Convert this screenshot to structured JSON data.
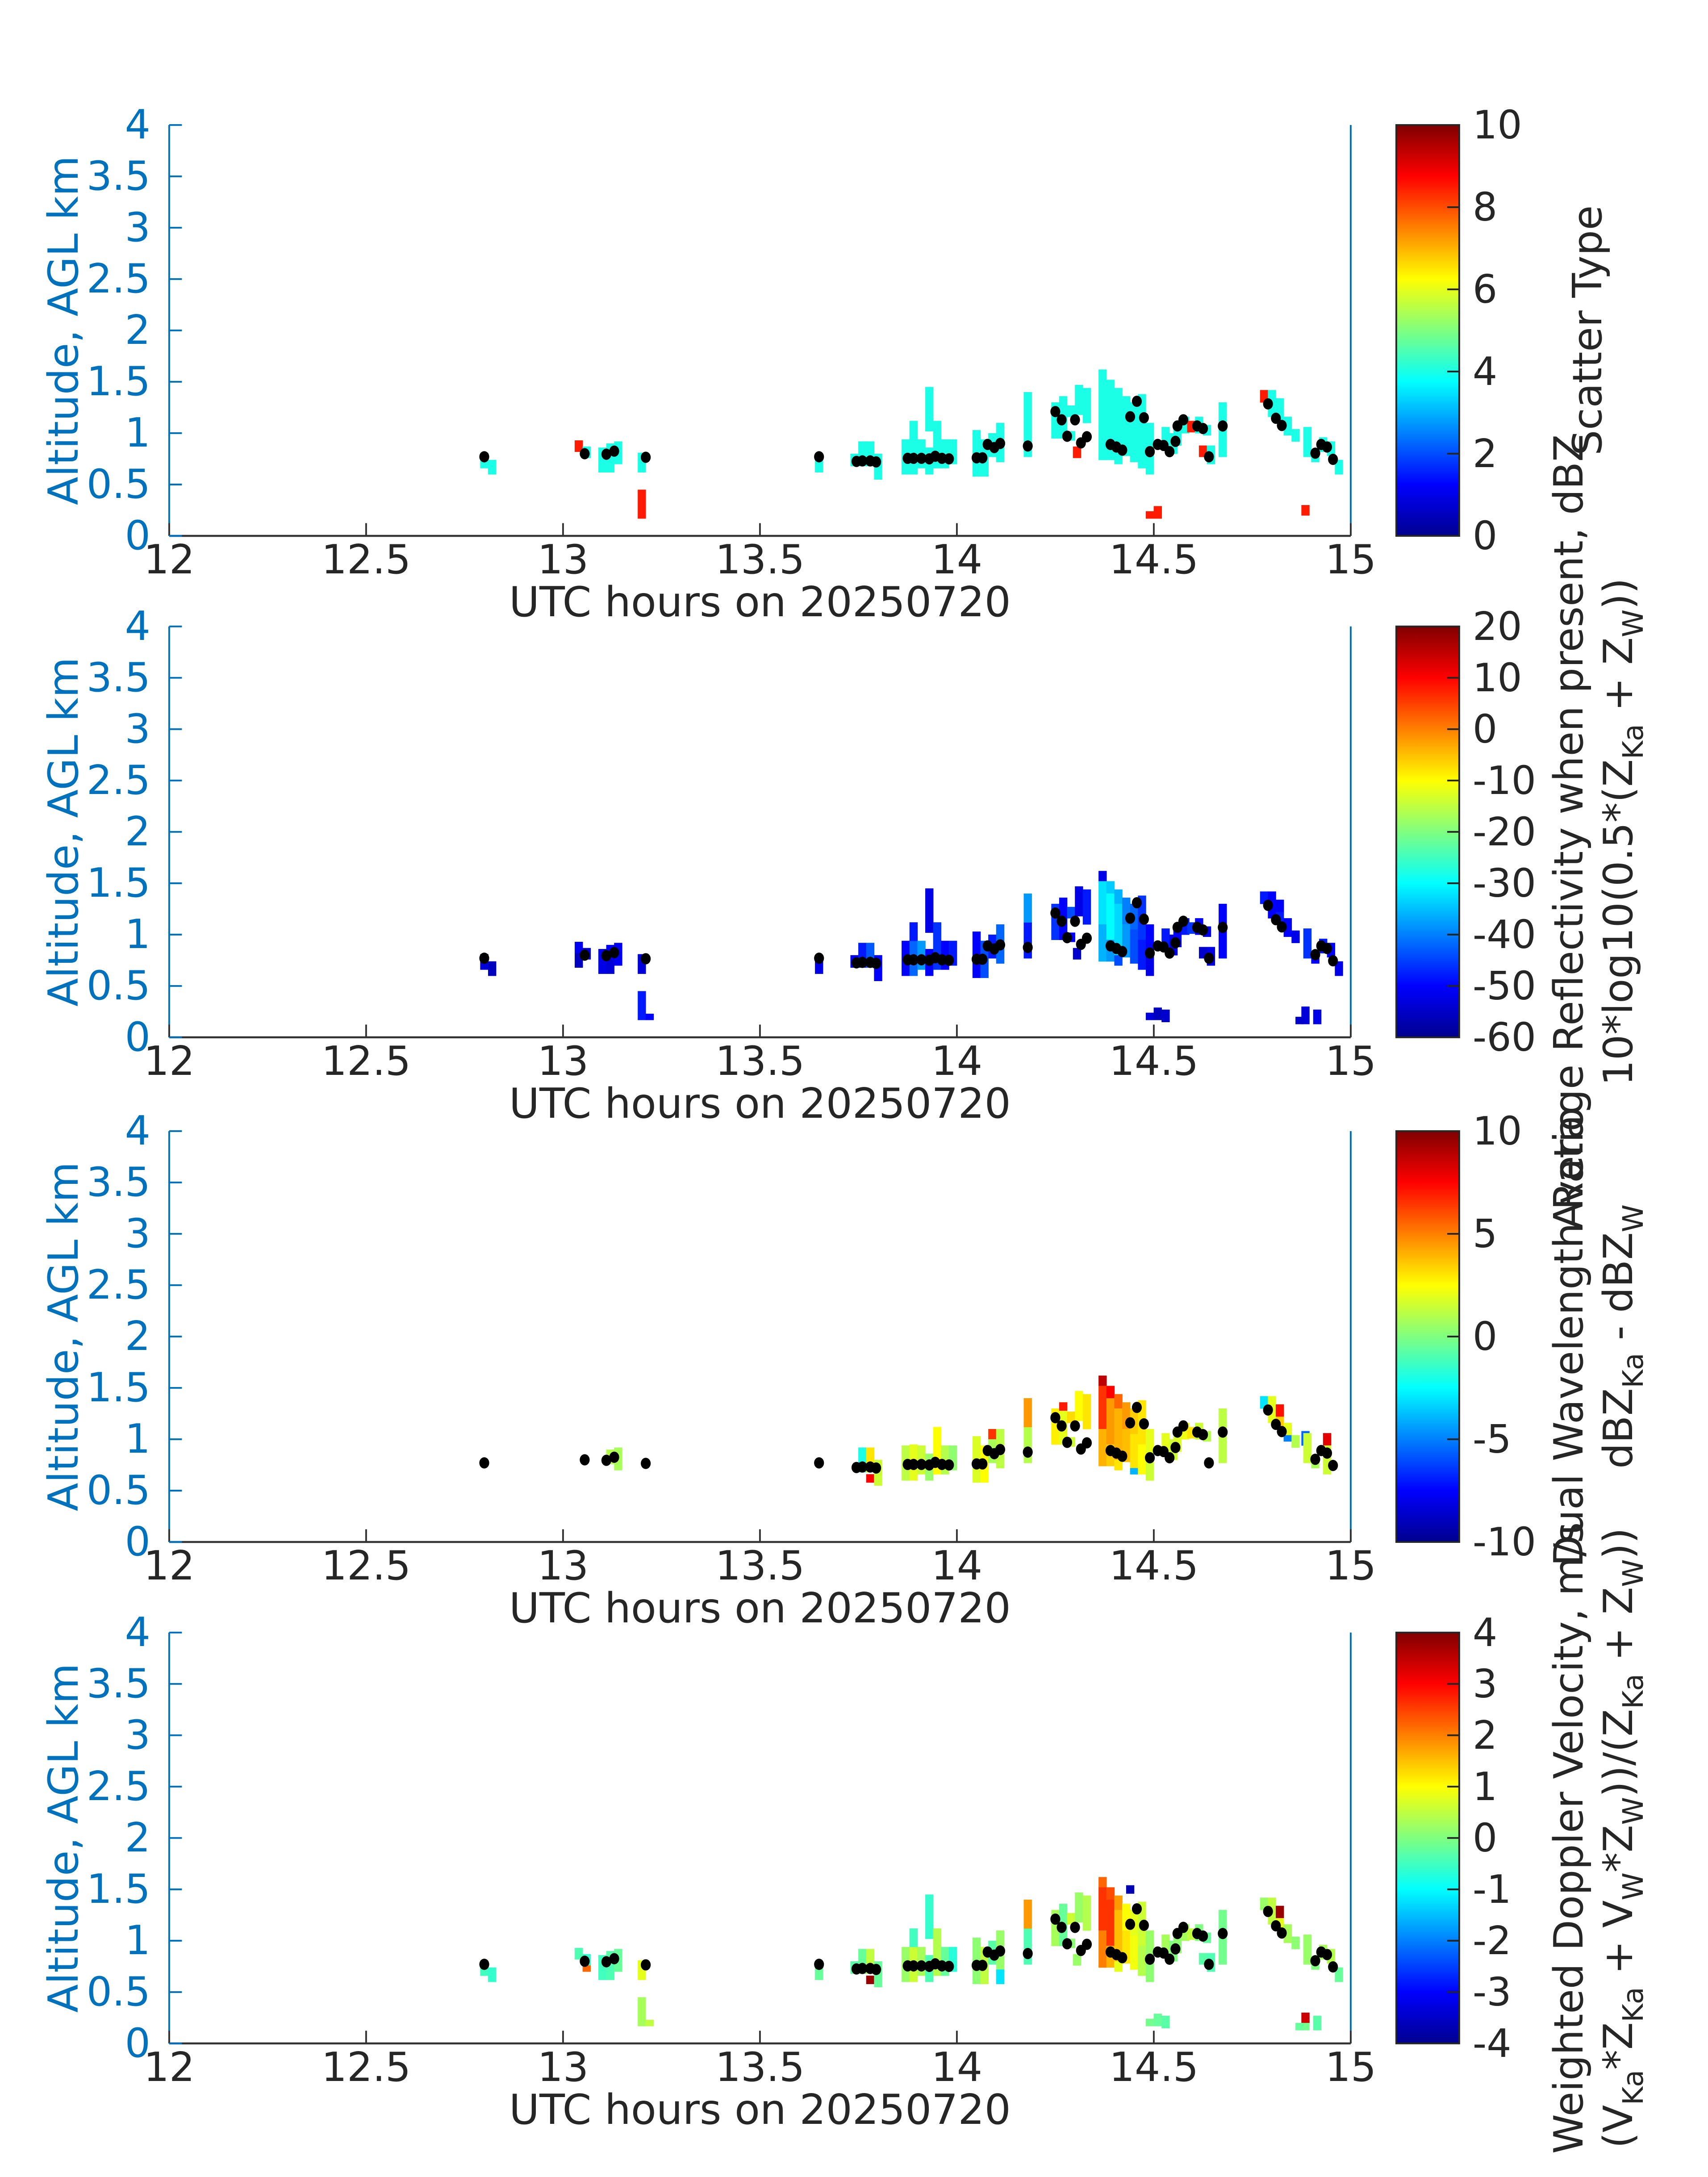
{
  "colors": {
    "background": "#ffffff",
    "y_axis": "#0072BD",
    "x_axis": "#333333",
    "text_dark": "#262626",
    "dot": "#000000",
    "jet_stops": [
      "#00008F",
      "#0000FF",
      "#00FFFF",
      "#FFFF00",
      "#FF0000",
      "#800000"
    ]
  },
  "chart_data": {
    "type": "heatmap",
    "title": "",
    "xlabel": "UTC hours on 20250720",
    "ylabel": "Altitude, AGL km",
    "x_range": [
      12,
      15
    ],
    "y_range": [
      0,
      4
    ],
    "x_ticks": [
      12,
      12.5,
      13,
      13.5,
      14,
      14.5,
      15
    ],
    "x_tick_labels": [
      "12",
      "12.5",
      "13",
      "13.5",
      "14",
      "14.5",
      "15"
    ],
    "y_ticks": [
      0,
      0.5,
      1,
      1.5,
      2,
      2.5,
      3,
      3.5,
      4
    ],
    "y_tick_labels": [
      "0",
      "0.5",
      "1",
      "1.5",
      "2",
      "2.5",
      "3",
      "3.5",
      "4"
    ],
    "grid": false,
    "legend_position": "right-colorbar",
    "cell_dt_hours": 0.02,
    "panels": [
      {
        "id": "scatter-type",
        "clim": [
          0,
          10
        ],
        "cbar_ticks": [
          0,
          2,
          4,
          6,
          8,
          10
        ],
        "cbar_tick_labels": [
          "0",
          "2",
          "4",
          "6",
          "8",
          "10"
        ],
        "label_lines": [
          [
            [
              "Scatter Type",
              "n"
            ]
          ]
        ]
      },
      {
        "id": "average-reflectivity",
        "clim": [
          -60,
          20
        ],
        "cbar_ticks": [
          -60,
          -50,
          -40,
          -30,
          -20,
          -10,
          0,
          10,
          20
        ],
        "cbar_tick_labels": [
          "-60",
          "-50",
          "-40",
          "-30",
          "-20",
          "-10",
          "0",
          "10",
          "20"
        ],
        "label_lines": [
          [
            [
              "Average Reflectivity when present, dBZ",
              "n"
            ]
          ],
          [
            [
              "10*log10(0.5*(Z",
              "n"
            ],
            [
              "Ka",
              "s"
            ],
            [
              " + Z",
              "n"
            ],
            [
              "W",
              "s"
            ],
            [
              "))",
              "n"
            ]
          ]
        ]
      },
      {
        "id": "dual-wavelength-ratio",
        "clim": [
          -10,
          10
        ],
        "cbar_ticks": [
          -10,
          -5,
          0,
          5,
          10
        ],
        "cbar_tick_labels": [
          "-10",
          "-5",
          "0",
          "5",
          "10"
        ],
        "label_lines": [
          [
            [
              "Dual Wavelength Ratio",
              "n"
            ]
          ],
          [
            [
              "dBZ",
              "n"
            ],
            [
              "Ka",
              "s"
            ],
            [
              " - dBZ",
              "n"
            ],
            [
              "W",
              "s"
            ]
          ]
        ]
      },
      {
        "id": "weighted-doppler-velocity",
        "clim": [
          -4,
          4
        ],
        "cbar_ticks": [
          -4,
          -3,
          -2,
          -1,
          0,
          1,
          2,
          3,
          4
        ],
        "cbar_tick_labels": [
          "-4",
          "-3",
          "-2",
          "-1",
          "0",
          "1",
          "2",
          "3",
          "4"
        ],
        "label_lines": [
          [
            [
              "Weighted Doppler Velocity, m/s",
              "n"
            ]
          ],
          [
            [
              "(V",
              "n"
            ],
            [
              "Ka",
              "s"
            ],
            [
              "*Z",
              "n"
            ],
            [
              "Ka",
              "s"
            ],
            [
              " + V",
              "n"
            ],
            [
              "W",
              "s"
            ],
            [
              "*Z",
              "n"
            ],
            [
              "W",
              "s"
            ],
            [
              "))/(Z",
              "n"
            ],
            [
              "Ka",
              "s"
            ],
            [
              " + Z",
              "n"
            ],
            [
              "W",
              "s"
            ],
            [
              "))",
              "n"
            ]
          ]
        ]
      }
    ],
    "cells": [
      [
        12.79,
        0.74,
        0.81,
        4,
        -54,
        null,
        0.9
      ],
      [
        12.79,
        0.66,
        0.74,
        4,
        -53,
        null,
        -0.5
      ],
      [
        12.81,
        0.6,
        0.74,
        4,
        -55,
        null,
        -0.6
      ],
      [
        13.03,
        0.82,
        0.93,
        8.5,
        -51,
        null,
        -0.4
      ],
      [
        13.03,
        0.68,
        0.82,
        null,
        -55,
        null,
        null
      ],
      [
        13.05,
        0.76,
        0.87,
        4,
        -52,
        null,
        -0.6
      ],
      [
        13.05,
        0.7,
        0.76,
        null,
        null,
        null,
        2.2
      ],
      [
        13.09,
        0.62,
        0.86,
        4,
        -52,
        null,
        -0.5
      ],
      [
        13.11,
        0.76,
        0.9,
        4,
        -50,
        1.0,
        -0.3
      ],
      [
        13.11,
        0.62,
        0.76,
        4,
        -53,
        null,
        -0.4
      ],
      [
        13.13,
        0.7,
        0.92,
        4,
        -51,
        0.8,
        -0.2
      ],
      [
        13.19,
        0.62,
        0.81,
        4,
        -53,
        null,
        0.8
      ],
      [
        13.19,
        0.17,
        0.45,
        8.5,
        -48,
        null,
        0.3
      ],
      [
        13.21,
        0.17,
        0.23,
        null,
        -50,
        null,
        0.5
      ],
      [
        13.64,
        0.62,
        0.8,
        4,
        -52,
        null,
        -0.2
      ],
      [
        13.73,
        0.68,
        0.8,
        4,
        -50,
        null,
        -0.3
      ],
      [
        13.75,
        0.68,
        0.92,
        4,
        -48,
        -2.0,
        -0.2
      ],
      [
        13.77,
        0.68,
        0.92,
        4,
        -43,
        3.0,
        0.5
      ],
      [
        13.77,
        0.58,
        0.66,
        null,
        null,
        7.5,
        3.8
      ],
      [
        13.79,
        0.55,
        0.8,
        4,
        -50,
        1.5,
        -0.2
      ],
      [
        13.86,
        0.6,
        0.94,
        4,
        -50,
        1.2,
        0.2
      ],
      [
        13.88,
        0.6,
        0.95,
        4,
        -42,
        2.0,
        0.6
      ],
      [
        13.88,
        0.94,
        1.12,
        4,
        -48,
        null,
        -0.5
      ],
      [
        13.9,
        0.66,
        0.94,
        4,
        -38,
        1.5,
        0.3
      ],
      [
        13.92,
        0.6,
        0.86,
        4,
        -50,
        0.5,
        -0.4
      ],
      [
        13.92,
        1.02,
        1.45,
        4,
        -52,
        null,
        -0.6
      ],
      [
        13.94,
        0.66,
        1.12,
        4,
        -46,
        2.5,
        0.4
      ],
      [
        13.96,
        0.66,
        0.94,
        4,
        -50,
        1.0,
        -0.2
      ],
      [
        13.98,
        0.7,
        0.94,
        4,
        -48,
        0.3,
        -0.7
      ],
      [
        14.04,
        0.58,
        1.03,
        4,
        -50,
        1.8,
        0.1
      ],
      [
        14.06,
        0.58,
        0.94,
        4,
        -44,
        2.5,
        0.5
      ],
      [
        14.08,
        1.0,
        1.1,
        null,
        null,
        6.5,
        null
      ],
      [
        14.08,
        0.77,
        1.0,
        4,
        -48,
        0.8,
        -0.3
      ],
      [
        14.1,
        0.72,
        1.1,
        4,
        -42,
        1.2,
        0.2
      ],
      [
        14.1,
        0.58,
        0.72,
        null,
        null,
        null,
        -1.2
      ],
      [
        14.17,
        0.77,
        1.12,
        4,
        -48,
        1.0,
        -0.4
      ],
      [
        14.17,
        1.12,
        1.4,
        4,
        -38,
        4.5,
        1.8
      ],
      [
        14.24,
        0.95,
        1.3,
        4,
        -46,
        2.8,
        0.3
      ],
      [
        14.26,
        0.95,
        1.36,
        4,
        -50,
        2.0,
        -0.2
      ],
      [
        14.26,
        1.28,
        1.36,
        null,
        null,
        7.0,
        null
      ],
      [
        14.28,
        1.16,
        1.27,
        4,
        -44,
        3.2,
        0.6
      ],
      [
        14.28,
        0.93,
        1.02,
        4,
        -50,
        1.5,
        0.1
      ],
      [
        14.295,
        0.76,
        0.87,
        8.5,
        -54,
        null,
        0.2
      ],
      [
        14.3,
        1.18,
        1.47,
        4,
        -52,
        2.5,
        0.2
      ],
      [
        14.32,
        1.1,
        1.44,
        4,
        -48,
        3.0,
        0.4
      ],
      [
        14.36,
        1.52,
        1.62,
        4,
        -52,
        8.8,
        2.2
      ],
      [
        14.36,
        1.1,
        1.52,
        4,
        -32,
        6.5,
        2.6
      ],
      [
        14.36,
        0.74,
        1.1,
        4,
        -36,
        4.0,
        2.0
      ],
      [
        14.38,
        1.4,
        1.52,
        4,
        -34,
        7.5,
        2.4
      ],
      [
        14.38,
        0.95,
        1.4,
        4,
        -30,
        4.5,
        2.6
      ],
      [
        14.38,
        0.74,
        0.95,
        4,
        -38,
        3.5,
        1.6
      ],
      [
        14.4,
        1.3,
        1.44,
        4,
        -36,
        5.5,
        1.8
      ],
      [
        14.4,
        0.8,
        1.3,
        4,
        -33,
        4.0,
        1.5
      ],
      [
        14.4,
        0.7,
        0.8,
        4,
        -44,
        3.0,
        0.8
      ],
      [
        14.42,
        1.1,
        1.36,
        4,
        -40,
        4.5,
        1.0
      ],
      [
        14.42,
        0.78,
        1.1,
        4,
        -38,
        3.8,
        1.2
      ],
      [
        14.43,
        1.46,
        1.54,
        null,
        null,
        null,
        -3.6
      ],
      [
        14.44,
        1.05,
        1.3,
        4,
        -42,
        3.5,
        0.8
      ],
      [
        14.44,
        0.72,
        1.05,
        4,
        -44,
        3.0,
        0.9
      ],
      [
        14.44,
        0.66,
        0.72,
        null,
        null,
        -4.0,
        null
      ],
      [
        14.46,
        0.95,
        1.38,
        4,
        -46,
        3.0,
        0.6
      ],
      [
        14.46,
        0.66,
        0.95,
        4,
        -48,
        2.5,
        0.4
      ],
      [
        14.48,
        0.8,
        1.1,
        4,
        -50,
        2.0,
        0.2
      ],
      [
        14.48,
        0.6,
        0.8,
        4,
        -52,
        1.5,
        0.1
      ],
      [
        14.48,
        0.17,
        0.24,
        8.5,
        -53,
        null,
        -0.1
      ],
      [
        14.5,
        0.17,
        0.29,
        8.5,
        -55,
        null,
        -0.2
      ],
      [
        14.52,
        0.15,
        0.27,
        null,
        -54,
        null,
        -0.3
      ],
      [
        14.52,
        0.86,
        1.06,
        4,
        -48,
        2.0,
        0.3
      ],
      [
        14.54,
        0.8,
        1.0,
        4,
        -52,
        1.5,
        0.0
      ],
      [
        14.55,
        0.88,
        1.1,
        4,
        -50,
        1.8,
        0.1
      ],
      [
        14.57,
        1.0,
        1.16,
        4,
        -48,
        2.2,
        0.3
      ],
      [
        14.585,
        1.01,
        1.12,
        8.5,
        -46,
        3.0,
        0.5
      ],
      [
        14.605,
        1.0,
        1.16,
        4,
        -50,
        1.5,
        0.0
      ],
      [
        14.625,
        0.98,
        1.08,
        4,
        -52,
        1.0,
        -0.2
      ],
      [
        14.615,
        0.77,
        0.88,
        8.5,
        -54,
        null,
        -0.3
      ],
      [
        14.635,
        0.7,
        0.88,
        4,
        -52,
        null,
        -0.4
      ],
      [
        14.665,
        0.77,
        1.3,
        4,
        -50,
        1.2,
        -0.1
      ],
      [
        14.77,
        1.3,
        1.42,
        8.5,
        -48,
        -3.0,
        0.2
      ],
      [
        14.79,
        1.16,
        1.42,
        4,
        -50,
        2.0,
        0.5
      ],
      [
        14.81,
        1.22,
        1.34,
        4,
        -50,
        7.2,
        3.8
      ],
      [
        14.81,
        1.1,
        1.22,
        4,
        -48,
        3.5,
        0.8
      ],
      [
        14.83,
        0.98,
        1.16,
        4,
        -50,
        2.0,
        0.3
      ],
      [
        14.83,
        0.98,
        1.04,
        null,
        null,
        -5.0,
        null
      ],
      [
        14.85,
        0.92,
        1.04,
        4,
        -52,
        1.0,
        0.1
      ],
      [
        14.875,
        0.94,
        1.08,
        null,
        null,
        -5.5,
        null
      ],
      [
        14.88,
        0.77,
        1.06,
        4,
        -46,
        1.5,
        0.2
      ],
      [
        14.9,
        0.72,
        0.82,
        4,
        -50,
        0.8,
        0.0
      ],
      [
        14.93,
        0.94,
        1.06,
        null,
        null,
        8.0,
        null
      ],
      [
        14.93,
        0.66,
        0.94,
        null,
        null,
        1.5,
        null
      ],
      [
        14.92,
        0.82,
        0.96,
        4,
        -48,
        null,
        0.3
      ],
      [
        14.94,
        0.78,
        0.92,
        4,
        -50,
        null,
        0.4
      ],
      [
        14.96,
        0.6,
        0.74,
        4,
        -52,
        null,
        -0.2
      ],
      [
        14.875,
        0.2,
        0.3,
        8.5,
        -53,
        null,
        3.4
      ],
      [
        14.875,
        0.13,
        0.2,
        null,
        -53,
        null,
        -0.1
      ],
      [
        14.86,
        0.13,
        0.2,
        null,
        -54,
        null,
        -0.2
      ],
      [
        14.905,
        0.13,
        0.27,
        null,
        -52,
        null,
        -0.3
      ]
    ],
    "dots": [
      [
        12.8,
        0.77
      ],
      [
        13.055,
        0.8
      ],
      [
        13.11,
        0.795
      ],
      [
        13.13,
        0.825
      ],
      [
        13.21,
        0.765
      ],
      [
        13.65,
        0.77
      ],
      [
        13.745,
        0.725
      ],
      [
        13.76,
        0.73
      ],
      [
        13.78,
        0.73
      ],
      [
        13.795,
        0.72
      ],
      [
        13.875,
        0.755
      ],
      [
        13.89,
        0.755
      ],
      [
        13.91,
        0.755
      ],
      [
        13.93,
        0.75
      ],
      [
        13.945,
        0.775
      ],
      [
        13.962,
        0.755
      ],
      [
        13.98,
        0.75
      ],
      [
        14.05,
        0.76
      ],
      [
        14.065,
        0.76
      ],
      [
        14.078,
        0.89
      ],
      [
        14.095,
        0.86
      ],
      [
        14.11,
        0.9
      ],
      [
        14.18,
        0.875
      ],
      [
        14.25,
        1.21
      ],
      [
        14.266,
        1.13
      ],
      [
        14.28,
        0.97
      ],
      [
        14.3,
        1.13
      ],
      [
        14.315,
        0.905
      ],
      [
        14.33,
        0.965
      ],
      [
        14.39,
        0.89
      ],
      [
        14.405,
        0.865
      ],
      [
        14.42,
        0.835
      ],
      [
        14.44,
        1.16
      ],
      [
        14.457,
        1.31
      ],
      [
        14.475,
        1.15
      ],
      [
        14.49,
        0.82
      ],
      [
        14.51,
        0.89
      ],
      [
        14.525,
        0.88
      ],
      [
        14.54,
        0.82
      ],
      [
        14.555,
        0.92
      ],
      [
        14.56,
        1.07
      ],
      [
        14.575,
        1.13
      ],
      [
        14.61,
        1.07
      ],
      [
        14.625,
        1.045
      ],
      [
        14.64,
        0.77
      ],
      [
        14.675,
        1.07
      ],
      [
        14.79,
        1.285
      ],
      [
        14.81,
        1.145
      ],
      [
        14.825,
        1.075
      ],
      [
        14.91,
        0.805
      ],
      [
        14.925,
        0.89
      ],
      [
        14.94,
        0.865
      ],
      [
        14.955,
        0.745
      ]
    ]
  }
}
